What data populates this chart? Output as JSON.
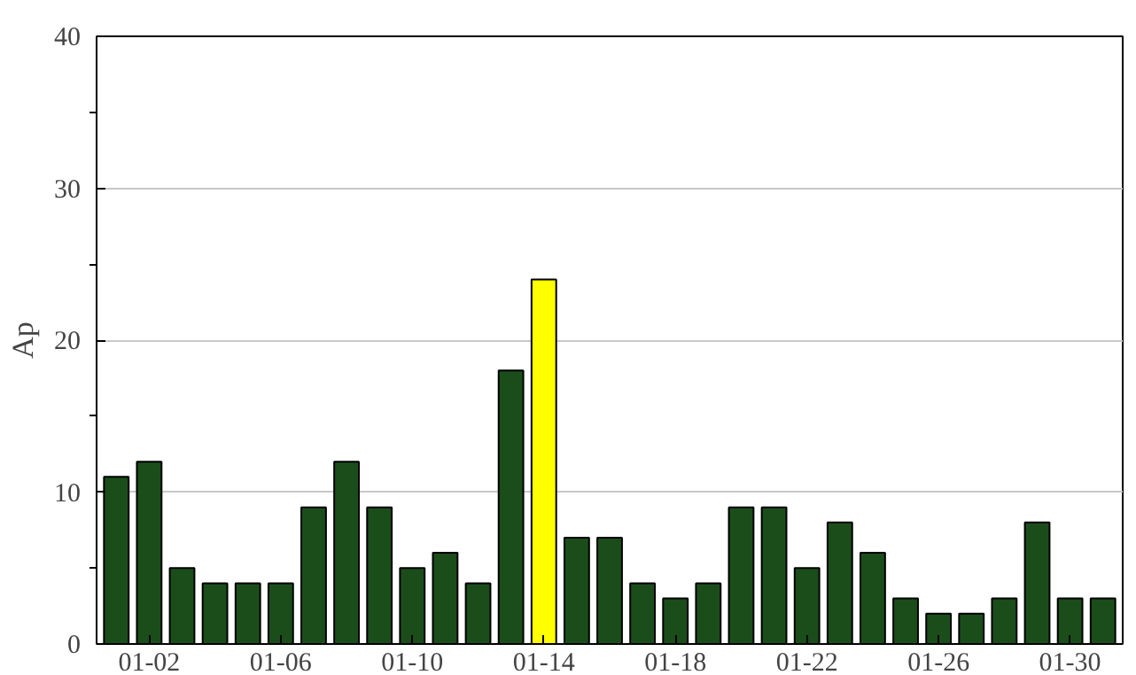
{
  "chart_data": {
    "type": "bar",
    "ylabel": "Ap",
    "categories": [
      null,
      "01-02",
      null,
      null,
      null,
      "01-06",
      null,
      null,
      null,
      "01-10",
      null,
      null,
      null,
      "01-14",
      null,
      null,
      null,
      "01-18",
      null,
      null,
      null,
      "01-22",
      null,
      null,
      null,
      "01-26",
      null,
      null,
      null,
      "01-30",
      null
    ],
    "values": [
      11,
      12,
      5,
      4,
      4,
      4,
      9,
      12,
      9,
      5,
      6,
      4,
      18,
      24,
      7,
      7,
      4,
      3,
      4,
      9,
      9,
      5,
      8,
      6,
      3,
      2,
      2,
      3,
      8,
      3,
      3
    ],
    "colors": [
      "#1b4d1b",
      "#1b4d1b",
      "#1b4d1b",
      "#1b4d1b",
      "#1b4d1b",
      "#1b4d1b",
      "#1b4d1b",
      "#1b4d1b",
      "#1b4d1b",
      "#1b4d1b",
      "#1b4d1b",
      "#1b4d1b",
      "#1b4d1b",
      "#ffff00",
      "#1b4d1b",
      "#1b4d1b",
      "#1b4d1b",
      "#1b4d1b",
      "#1b4d1b",
      "#1b4d1b",
      "#1b4d1b",
      "#1b4d1b",
      "#1b4d1b",
      "#1b4d1b",
      "#1b4d1b",
      "#1b4d1b",
      "#1b4d1b",
      "#1b4d1b",
      "#1b4d1b",
      "#1b4d1b",
      "#1b4d1b"
    ],
    "ylim": [
      0,
      40
    ],
    "yticks": [
      0,
      10,
      20,
      30,
      40
    ],
    "grid": "y"
  }
}
